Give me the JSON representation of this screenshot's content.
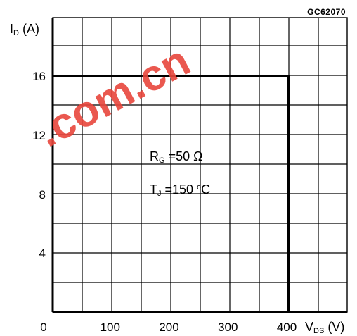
{
  "figure_code": "GC62070",
  "chart_data": {
    "type": "line",
    "title": "",
    "ylabel": {
      "main": "I",
      "sub": "D",
      "unit": "(A)"
    },
    "xlabel": {
      "main": "V",
      "sub": "DS",
      "unit": "(V)"
    },
    "xlim": [
      0,
      400
    ],
    "ylim": [
      0,
      20
    ],
    "x_ticks": [
      "0",
      "100",
      "200",
      "300",
      "400"
    ],
    "y_ticks": [
      "4",
      "8",
      "12",
      "16"
    ],
    "grid": true,
    "series": [
      {
        "x": [
          0,
          400,
          400
        ],
        "y": [
          16,
          16,
          0
        ],
        "color": "#000000"
      }
    ],
    "annotations": [
      {
        "main": "R",
        "sub": "G",
        "rest": " =50 Ω"
      },
      {
        "main": "T",
        "sub": "J",
        "rest": " =150 ",
        "sup": "o",
        "tail": "C"
      }
    ]
  },
  "watermark": {
    "text": ".com.cn",
    "color": "#e8463c"
  }
}
